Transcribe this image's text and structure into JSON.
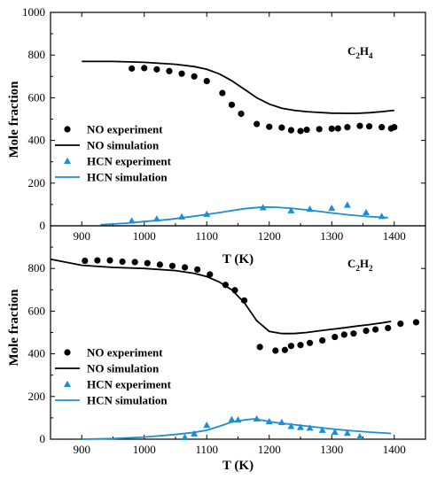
{
  "colors": {
    "no": "#000000",
    "hcn": "#1a8fd6"
  },
  "chart_data": [
    {
      "type": "line",
      "species": {
        "base": "C",
        "sub1": "2",
        "mid": "H",
        "sub2": "4"
      },
      "xlabel": "T (K)",
      "ylabel": "Mole fraction",
      "xlim": [
        850,
        1450
      ],
      "ylim": [
        0,
        1000
      ],
      "xticks": [
        900,
        1000,
        1100,
        1200,
        1300,
        1400
      ],
      "yticks": [
        0,
        200,
        400,
        600,
        800,
        1000
      ],
      "legend": {
        "position": "left"
      },
      "series": [
        {
          "name": "NO experiment",
          "kind": "scatter",
          "marker": "circle",
          "color": "#000000",
          "x": [
            980,
            1000,
            1020,
            1040,
            1060,
            1080,
            1100,
            1125,
            1140,
            1155,
            1180,
            1200,
            1220,
            1235,
            1250,
            1260,
            1280,
            1300,
            1310,
            1325,
            1345,
            1360,
            1380,
            1395,
            1400
          ],
          "y": [
            737,
            739,
            733,
            725,
            713,
            700,
            678,
            622,
            567,
            525,
            477,
            464,
            460,
            448,
            444,
            450,
            453,
            455,
            456,
            462,
            468,
            466,
            462,
            456,
            462
          ]
        },
        {
          "name": "NO simulation",
          "kind": "line",
          "color": "#000000",
          "x": [
            900,
            950,
            1000,
            1050,
            1080,
            1100,
            1120,
            1140,
            1160,
            1180,
            1200,
            1220,
            1240,
            1260,
            1280,
            1300,
            1320,
            1340,
            1360,
            1380,
            1400
          ],
          "y": [
            770,
            770,
            766,
            757,
            746,
            733,
            712,
            680,
            640,
            600,
            570,
            551,
            541,
            535,
            531,
            528,
            527,
            527,
            530,
            535,
            541
          ]
        },
        {
          "name": "HCN experiment",
          "kind": "scatter",
          "marker": "triangle",
          "color": "#1a8fd6",
          "x": [
            980,
            1020,
            1060,
            1100,
            1190,
            1235,
            1265,
            1300,
            1325,
            1355,
            1380
          ],
          "y": [
            23,
            32,
            42,
            54,
            85,
            71,
            78,
            82,
            97,
            62,
            44
          ]
        },
        {
          "name": "HCN simulation",
          "kind": "line",
          "color": "#1a8fd6",
          "x": [
            930,
            970,
            1000,
            1040,
            1080,
            1120,
            1160,
            1190,
            1210,
            1240,
            1270,
            1300,
            1330,
            1360,
            1390
          ],
          "y": [
            5,
            12,
            20,
            30,
            45,
            62,
            80,
            88,
            87,
            81,
            71,
            60,
            50,
            43,
            38
          ]
        }
      ]
    },
    {
      "type": "line",
      "species": {
        "base": "C",
        "sub1": "2",
        "mid": "H",
        "sub2": "2"
      },
      "xlabel": "T (K)",
      "ylabel": "Mole fraction",
      "xlim": [
        850,
        1450
      ],
      "ylim": [
        0,
        1000
      ],
      "xticks": [
        900,
        1000,
        1100,
        1200,
        1300,
        1400
      ],
      "yticks": [
        0,
        200,
        400,
        600,
        800
      ],
      "legend": {
        "position": "left"
      },
      "series": [
        {
          "name": "NO experiment",
          "kind": "scatter",
          "marker": "circle",
          "color": "#000000",
          "x": [
            905,
            925,
            945,
            965,
            985,
            1005,
            1025,
            1045,
            1065,
            1085,
            1105,
            1130,
            1145,
            1160,
            1185,
            1210,
            1225,
            1235,
            1250,
            1265,
            1285,
            1305,
            1320,
            1335,
            1355,
            1370,
            1390,
            1410,
            1435
          ],
          "y": [
            836,
            838,
            838,
            832,
            830,
            825,
            818,
            812,
            805,
            795,
            772,
            723,
            698,
            650,
            432,
            415,
            418,
            437,
            441,
            451,
            463,
            479,
            490,
            495,
            508,
            514,
            521,
            541,
            548
          ]
        },
        {
          "name": "NO simulation",
          "kind": "line",
          "color": "#000000",
          "x": [
            850,
            900,
            950,
            1000,
            1050,
            1080,
            1100,
            1120,
            1140,
            1160,
            1180,
            1200,
            1220,
            1240,
            1260,
            1280,
            1300,
            1320,
            1340,
            1360,
            1380,
            1395
          ],
          "y": [
            843,
            815,
            805,
            800,
            790,
            777,
            762,
            737,
            700,
            640,
            555,
            505,
            495,
            495,
            500,
            508,
            515,
            522,
            530,
            537,
            545,
            552
          ]
        },
        {
          "name": "HCN experiment",
          "kind": "scatter",
          "marker": "triangle",
          "color": "#1a8fd6",
          "x": [
            1065,
            1080,
            1100,
            1140,
            1150,
            1180,
            1200,
            1220,
            1235,
            1250,
            1265,
            1285,
            1305,
            1325,
            1345
          ],
          "y": [
            8,
            25,
            65,
            92,
            90,
            95,
            82,
            78,
            60,
            55,
            52,
            42,
            33,
            28,
            12
          ]
        },
        {
          "name": "HCN simulation",
          "kind": "line",
          "color": "#1a8fd6",
          "x": [
            900,
            950,
            1000,
            1050,
            1080,
            1100,
            1120,
            1140,
            1160,
            1175,
            1190,
            1210,
            1240,
            1270,
            1300,
            1330,
            1360,
            1395
          ],
          "y": [
            0,
            3,
            10,
            22,
            32,
            42,
            60,
            80,
            90,
            95,
            88,
            78,
            68,
            58,
            48,
            40,
            33,
            27
          ]
        }
      ]
    }
  ]
}
